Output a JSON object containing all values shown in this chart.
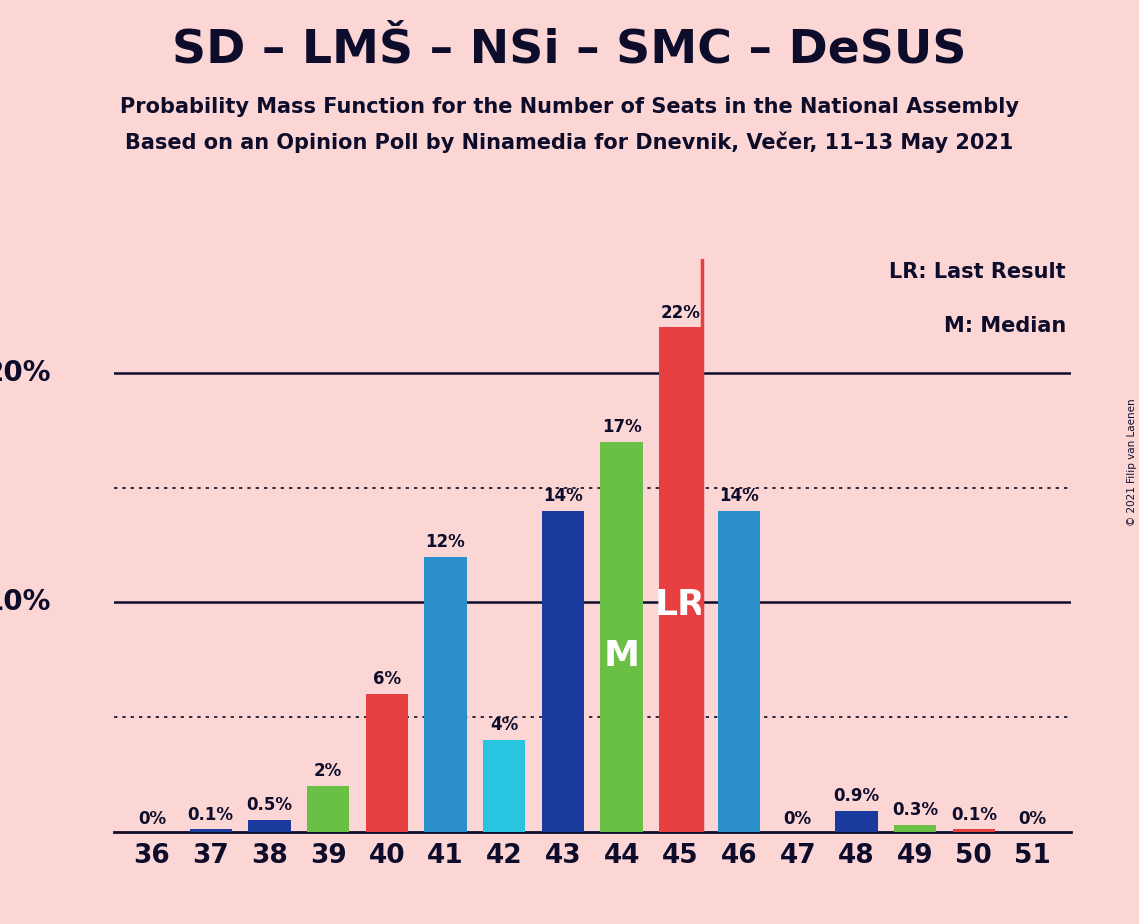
{
  "title": "SD – LMŠ – NSi – SMC – DeSUS",
  "subtitle1": "Probability Mass Function for the Number of Seats in the National Assembly",
  "subtitle2": "Based on an Opinion Poll by Ninamedia for Dnevnik, Večer, 11–13 May 2021",
  "copyright": "© 2021 Filip van Laenen",
  "legend1": "LR: Last Result",
  "legend2": "M: Median",
  "background_color": "#fcd5d5",
  "seats": [
    36,
    37,
    38,
    39,
    40,
    41,
    42,
    43,
    44,
    45,
    46,
    47,
    48,
    49,
    50,
    51
  ],
  "values": [
    0.0,
    0.1,
    0.5,
    2.0,
    6.0,
    12.0,
    4.0,
    14.0,
    17.0,
    22.0,
    14.0,
    0.0,
    0.9,
    0.3,
    0.1,
    0.0
  ],
  "bar_colors": [
    "#e84040",
    "#1a3a9e",
    "#1a3a9e",
    "#6abf45",
    "#e84040",
    "#2b8fcc",
    "#29c4df",
    "#1a3a9e",
    "#6abf45",
    "#e84040",
    "#2b8fcc",
    "#29c4df",
    "#1a3a9e",
    "#6abf45",
    "#e84040",
    "#e84040"
  ],
  "labels": [
    "0%",
    "0.1%",
    "0.5%",
    "2%",
    "6%",
    "12%",
    "4%",
    "14%",
    "17%",
    "22%",
    "14%",
    "0%",
    "0.9%",
    "0.3%",
    "0.1%",
    "0%"
  ],
  "median_seat": 44,
  "lr_seat": 45,
  "ylim": [
    0,
    25
  ],
  "solid_yticks": [
    10,
    20
  ],
  "dotted_yticks": [
    5,
    15
  ],
  "axis_color": "#0d0d2b",
  "lr_color": "#e84040",
  "title_color": "#0d0d2b",
  "bar_width": 0.72
}
